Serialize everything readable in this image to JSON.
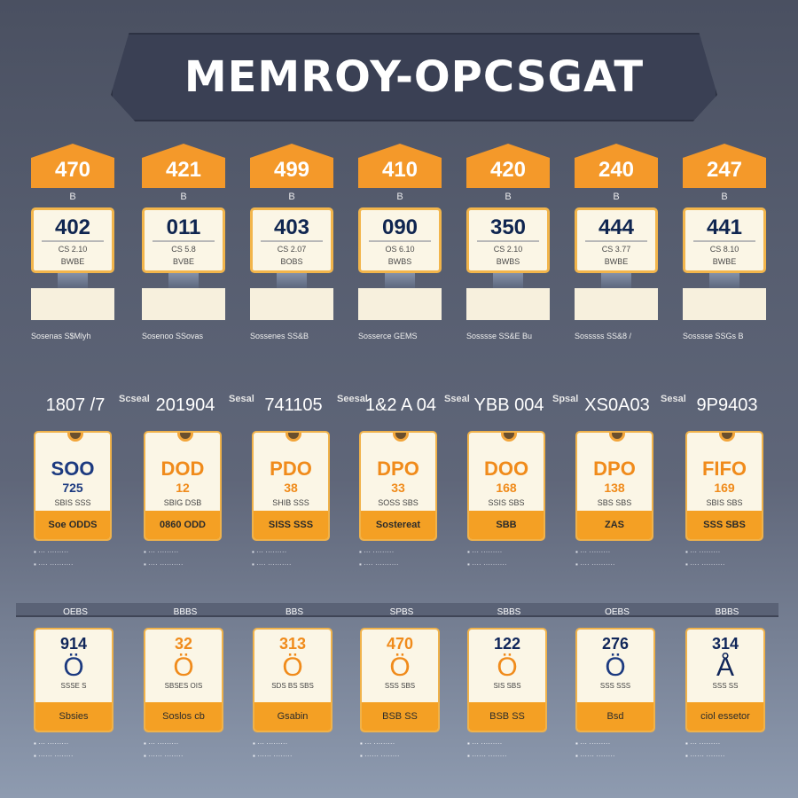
{
  "banner": {
    "title": "MEMROY-OPCSGAT"
  },
  "row1": [
    {
      "cap": "470",
      "sub": "B",
      "big": "402",
      "small1": "CS 2.10",
      "small2": "BWBE",
      "caption": "Sosenas S$Mlyh"
    },
    {
      "cap": "421",
      "sub": "B",
      "big": "011",
      "small1": "CS 5.8",
      "small2": "BVBE",
      "caption": "Sosenoo SSovas"
    },
    {
      "cap": "499",
      "sub": "B",
      "big": "403",
      "small1": "CS 2.07",
      "small2": "BOBS",
      "caption": "Sossenes SS&B"
    },
    {
      "cap": "410",
      "sub": "B",
      "big": "090",
      "small1": "OS 6.10",
      "small2": "BWBS",
      "caption": "Sosserce GEMS"
    },
    {
      "cap": "420",
      "sub": "B",
      "big": "350",
      "small1": "CS 2.10",
      "small2": "BWBS",
      "caption": "Sosssse SS&E Bu"
    },
    {
      "cap": "240",
      "sub": "B",
      "big": "444",
      "small1": "CS 3.77",
      "small2": "BWBE",
      "caption": "Sosssss SS&8 /"
    },
    {
      "cap": "247",
      "sub": "B",
      "big": "441",
      "small1": "CS 8.10",
      "small2": "BWBE",
      "caption": "Sosssse SSGs B"
    }
  ],
  "row2": [
    {
      "head": "1807 /7",
      "side": "Scseal",
      "big": "SOO",
      "mid": "725",
      "small": "SBIS SSS",
      "foot": "Soe ODDS",
      "theme": "blue"
    },
    {
      "head": "201904",
      "side": "Sesal",
      "big": "DOD",
      "mid": "12",
      "small": "SBIG DSB",
      "foot": "0860 ODD",
      "theme": "orange"
    },
    {
      "head": "741105",
      "side": "Seesal",
      "big": "PDO",
      "mid": "38",
      "small": "SHIB SSS",
      "foot": "SISS SSS",
      "theme": "orange"
    },
    {
      "head": "1&2 A 04",
      "side": "Sseal",
      "big": "DPO",
      "mid": "33",
      "small": "SOSS SBS",
      "foot": "Sostereat",
      "theme": "orange"
    },
    {
      "head": "YBB 004",
      "side": "Spsal",
      "big": "DOO",
      "mid": "168",
      "small": "SSIS SBS",
      "foot": "SBB",
      "theme": "orange"
    },
    {
      "head": "XS0A03",
      "side": "Sesal",
      "big": "DPO",
      "mid": "138",
      "small": "SBS SBS",
      "foot": "ZAS",
      "theme": "orange"
    },
    {
      "head": "9P9403",
      "side": "",
      "big": "FIFO",
      "mid": "169",
      "small": "SBIS SBS",
      "foot": "SSS SBS",
      "theme": "orange"
    }
  ],
  "row3": [
    {
      "label": "OEBS",
      "big": "914",
      "small": "SSSE S",
      "foot": "Sbsies"
    },
    {
      "label": "BBBS",
      "big": "32",
      "small": "SBSES OIS",
      "foot": "Soslos cb"
    },
    {
      "label": "BBS",
      "big": "313",
      "small": "SDS BS SBS",
      "foot": "Gsabin"
    },
    {
      "label": "SPBS",
      "big": "470",
      "small": "SSS SBS",
      "foot": "BSB SS"
    },
    {
      "label": "SBBS",
      "big": "122",
      "small": "SIS SBS",
      "foot": "BSB SS"
    },
    {
      "label": "OEBS",
      "big": "276",
      "small": "SSS SSS",
      "foot": "Bsd"
    },
    {
      "label": "BBBS",
      "big": "314",
      "small": "SSS SS",
      "foot": "ciol essetor"
    }
  ]
}
